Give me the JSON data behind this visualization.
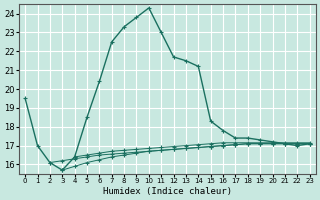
{
  "xlabel": "Humidex (Indice chaleur)",
  "background_color": "#c8e8e0",
  "grid_color": "#ffffff",
  "line_color": "#1a7060",
  "x_ticks": [
    0,
    1,
    2,
    3,
    4,
    5,
    6,
    7,
    8,
    9,
    10,
    11,
    12,
    13,
    14,
    15,
    16,
    17,
    18,
    19,
    20,
    21,
    22,
    23
  ],
  "y_ticks": [
    16,
    17,
    18,
    19,
    20,
    21,
    22,
    23,
    24
  ],
  "xlim": [
    -0.5,
    23.5
  ],
  "ylim": [
    15.5,
    24.5
  ],
  "line1_x": [
    0,
    1,
    2,
    3,
    4,
    5,
    6,
    7,
    8,
    9,
    10,
    11,
    12,
    13,
    14,
    15,
    16,
    17,
    18,
    19,
    20,
    21,
    22,
    23
  ],
  "line1_y": [
    19.5,
    17.0,
    16.1,
    15.7,
    16.4,
    18.5,
    20.4,
    22.5,
    23.3,
    23.8,
    24.3,
    23.0,
    21.7,
    21.5,
    21.2,
    18.3,
    17.8,
    17.4,
    17.4,
    17.3,
    17.2,
    17.1,
    17.0,
    17.1
  ],
  "line2_x": [
    2,
    3,
    4,
    5,
    6,
    7,
    8,
    9,
    10,
    11,
    12,
    13,
    14,
    15,
    16,
    17,
    18,
    19,
    20,
    21,
    22,
    23
  ],
  "line2_y": [
    16.1,
    16.2,
    16.3,
    16.4,
    16.5,
    16.55,
    16.6,
    16.65,
    16.7,
    16.75,
    16.8,
    16.85,
    16.9,
    16.95,
    17.0,
    17.05,
    17.1,
    17.1,
    17.1,
    17.1,
    17.1,
    17.1
  ],
  "line3_x": [
    3,
    4,
    5,
    6,
    7,
    8,
    9,
    10,
    11,
    12,
    13,
    14,
    15,
    16,
    17,
    18,
    19,
    20,
    21,
    22,
    23
  ],
  "line3_y": [
    15.7,
    15.9,
    16.1,
    16.25,
    16.4,
    16.5,
    16.6,
    16.7,
    16.75,
    16.8,
    16.85,
    16.9,
    16.95,
    17.0,
    17.05,
    17.1,
    17.1,
    17.1,
    17.1,
    17.1,
    17.1
  ],
  "line4_x": [
    4,
    5,
    6,
    7,
    8,
    9,
    10,
    11,
    12,
    13,
    14,
    15,
    16,
    17,
    18,
    19,
    20,
    21,
    22,
    23
  ],
  "line4_y": [
    16.4,
    16.5,
    16.6,
    16.7,
    16.75,
    16.8,
    16.85,
    16.9,
    16.95,
    17.0,
    17.05,
    17.1,
    17.15,
    17.15,
    17.15,
    17.15,
    17.15,
    17.15,
    17.15,
    17.15
  ]
}
